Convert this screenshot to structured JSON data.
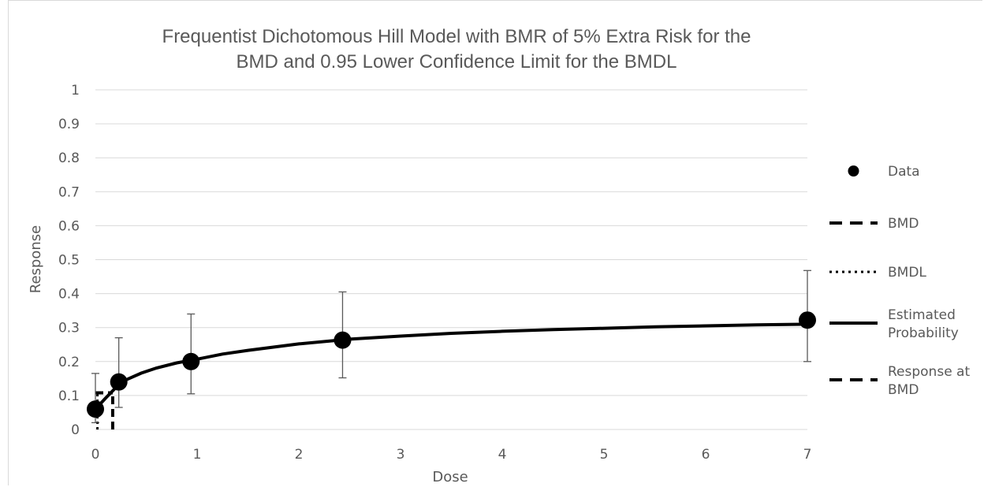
{
  "chart_data": {
    "type": "scatter",
    "title_lines": [
      "Frequentist Dichotomous Hill Model with BMR of 5% Extra Risk for the",
      "BMD and 0.95 Lower Confidence Limit for the BMDL"
    ],
    "xlabel": "Dose",
    "ylabel": "Response",
    "xlim": [
      0,
      7
    ],
    "ylim": [
      0,
      1
    ],
    "x_ticks": [
      "0",
      "1",
      "2",
      "3",
      "4",
      "5",
      "6",
      "7"
    ],
    "y_ticks": [
      "0",
      "0.1",
      "0.2",
      "0.3",
      "0.4",
      "0.5",
      "0.6",
      "0.7",
      "0.8",
      "0.9",
      "1"
    ],
    "grid": "horizontal",
    "legend_position": "right",
    "legend": [
      {
        "label_lines": [
          "Data"
        ],
        "style": "marker"
      },
      {
        "label_lines": [
          "BMD"
        ],
        "style": "dashed"
      },
      {
        "label_lines": [
          "BMDL"
        ],
        "style": "dotted"
      },
      {
        "label_lines": [
          "Estimated",
          "Probability"
        ],
        "style": "solid"
      },
      {
        "label_lines": [
          "Response at",
          "BMD"
        ],
        "style": "dashed"
      }
    ],
    "data_points": [
      {
        "x": 0,
        "y": 0.06,
        "lower": 0.02,
        "upper": 0.165
      },
      {
        "x": 0.23,
        "y": 0.14,
        "lower": 0.065,
        "upper": 0.27
      },
      {
        "x": 0.94,
        "y": 0.2,
        "lower": 0.105,
        "upper": 0.34
      },
      {
        "x": 2.43,
        "y": 0.263,
        "lower": 0.152,
        "upper": 0.405
      },
      {
        "x": 7,
        "y": 0.322,
        "lower": 0.2,
        "upper": 0.468
      }
    ],
    "estimated_probability": {
      "x": [
        0,
        0.1,
        0.2,
        0.3,
        0.45,
        0.6,
        0.8,
        1.0,
        1.25,
        1.5,
        2.0,
        2.5,
        3.0,
        3.5,
        4.0,
        4.5,
        5.0,
        5.5,
        6.0,
        6.5,
        7.0
      ],
      "y": [
        0.06,
        0.092,
        0.123,
        0.146,
        0.166,
        0.181,
        0.196,
        0.207,
        0.222,
        0.233,
        0.252,
        0.266,
        0.275,
        0.283,
        0.289,
        0.294,
        0.298,
        0.302,
        0.305,
        0.308,
        0.31
      ]
    },
    "bmd": 0.17,
    "bmdl": 0.02,
    "response_at_bmd": 0.108,
    "colors": {
      "series": "#000000",
      "text": "#595959",
      "grid": "#d9d9d9",
      "error_bar": "#595959"
    }
  }
}
